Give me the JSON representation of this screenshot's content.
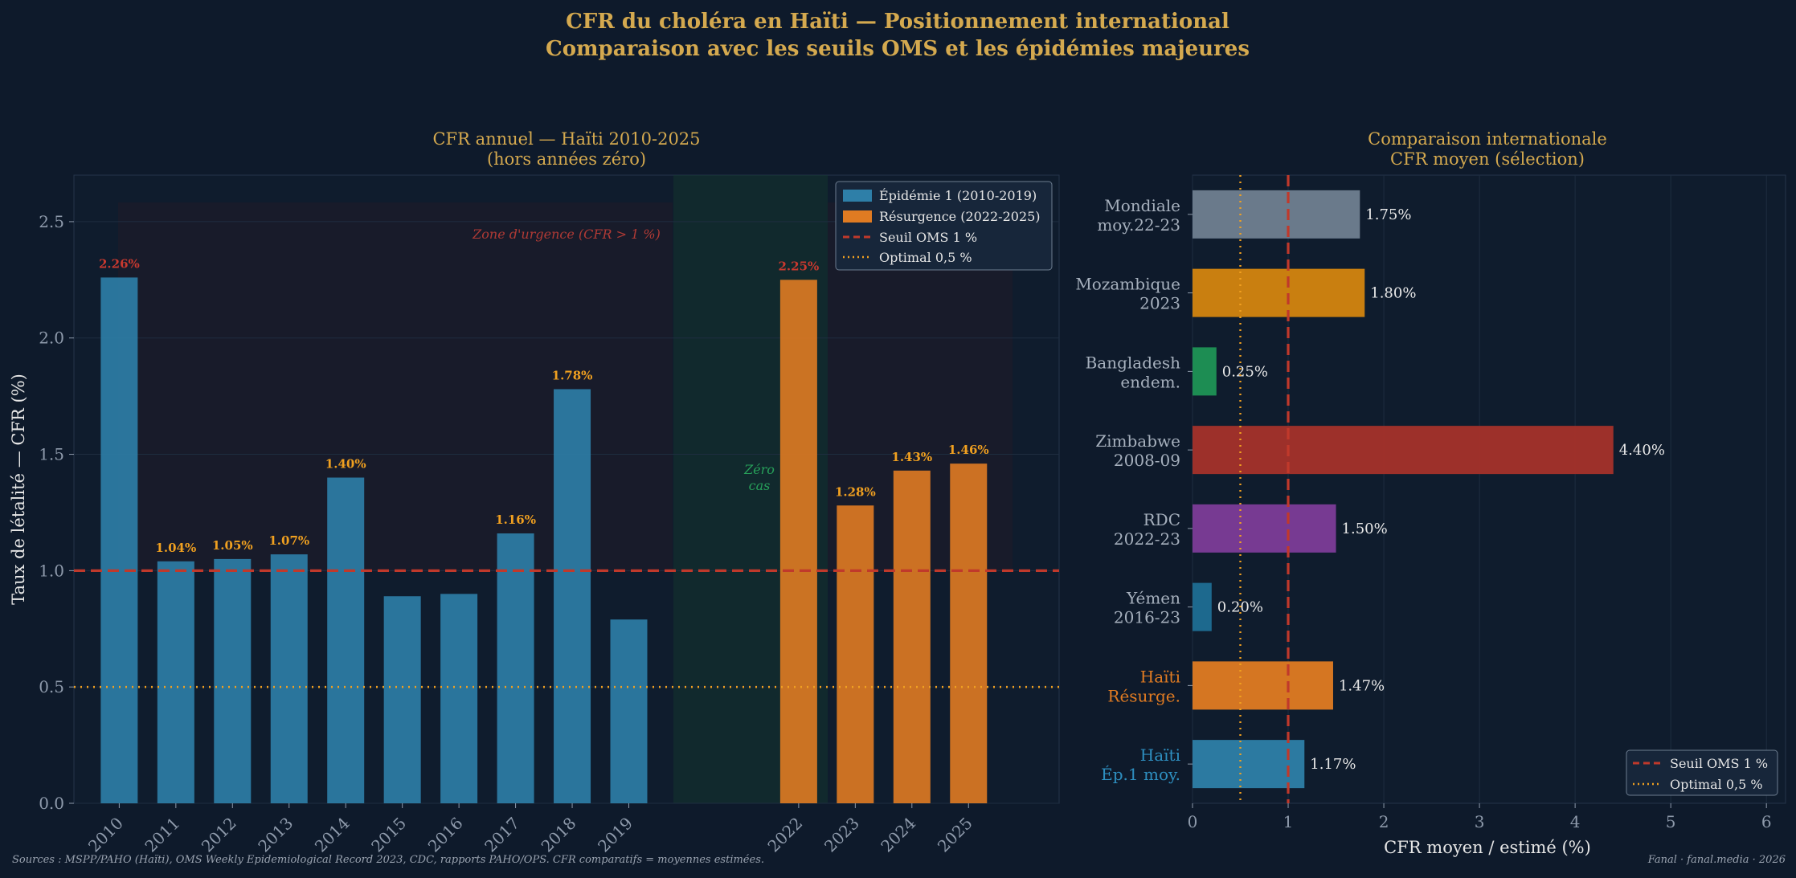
{
  "header": {
    "title": "CFR du choléra en Haïti — Positionnement international",
    "subtitle": "Comparaison avec les seuils OMS et les épidémies majeures"
  },
  "chart_data": [
    {
      "type": "bar",
      "title": "CFR annuel — Haïti 2010-2025",
      "subtitle": "(hors années zéro)",
      "xlabel": "",
      "ylabel": "Taux de létalité — CFR (%)",
      "ylim": [
        0,
        2.7
      ],
      "yticks": [
        "0.0",
        "0.5",
        "1.0",
        "1.5",
        "2.0",
        "2.5"
      ],
      "categories": [
        "2010",
        "2011",
        "2012",
        "2013",
        "2014",
        "2015",
        "2016",
        "2017",
        "2018",
        "2019",
        "2022",
        "2023",
        "2024",
        "2025"
      ],
      "series": [
        {
          "name": "Épidémie 1 (2010-2019)",
          "color": "#2e7fa8",
          "x": [
            "2010",
            "2011",
            "2012",
            "2013",
            "2014",
            "2015",
            "2016",
            "2017",
            "2018",
            "2019"
          ],
          "values": [
            2.26,
            1.04,
            1.05,
            1.07,
            1.4,
            0.89,
            0.9,
            1.16,
            1.78,
            0.79
          ]
        },
        {
          "name": "Résurgence (2022-2025)",
          "color": "#e07b22",
          "x": [
            "2022",
            "2023",
            "2024",
            "2025"
          ],
          "values": [
            2.25,
            1.28,
            1.43,
            1.46
          ]
        }
      ],
      "data_labels": [
        {
          "x": "2010",
          "text": "2.26%"
        },
        {
          "x": "2011",
          "text": "1.04%"
        },
        {
          "x": "2012",
          "text": "1.05%"
        },
        {
          "x": "2013",
          "text": "1.07%"
        },
        {
          "x": "2014",
          "text": "1.40%"
        },
        {
          "x": "2017",
          "text": "1.16%"
        },
        {
          "x": "2018",
          "text": "1.78%"
        },
        {
          "x": "2022",
          "text": "2.25%"
        },
        {
          "x": "2023",
          "text": "1.28%"
        },
        {
          "x": "2024",
          "text": "1.43%"
        },
        {
          "x": "2025",
          "text": "1.46%"
        }
      ],
      "reference_lines": [
        {
          "name": "Seuil OMS 1 %",
          "value": 1.0,
          "style": "dashed",
          "color": "#c0392b"
        },
        {
          "name": "Optimal 0,5 %",
          "value": 0.5,
          "style": "dotted",
          "color": "#f0a020"
        }
      ],
      "annotations": [
        {
          "text": "Zone d'urgence (CFR > 1 %)",
          "color": "#c0392b"
        },
        {
          "text": "Zéro",
          "color": "#27a05a"
        },
        {
          "text": "cas",
          "color": "#27a05a"
        }
      ],
      "legend": "top-right",
      "grid": true
    },
    {
      "type": "bar",
      "orientation": "horizontal",
      "title": "Comparaison internationale",
      "subtitle": "CFR moyen (sélection)",
      "xlabel": "CFR moyen / estimé (%)",
      "ylabel": "",
      "xlim": [
        0,
        6.2
      ],
      "xticks": [
        "0",
        "1",
        "2",
        "3",
        "4",
        "5",
        "6"
      ],
      "categories": [
        {
          "line1": "Mondiale",
          "line2": "moy.22-23",
          "value": 1.75,
          "label": "1.75%",
          "color": "#708090",
          "labelColor": "#a6b0bd"
        },
        {
          "line1": "Mozambique",
          "line2": "2023",
          "value": 1.8,
          "label": "1.80%",
          "color": "#d4850f",
          "labelColor": "#a6b0bd"
        },
        {
          "line1": "Bangladesh",
          "line2": "endem.",
          "value": 0.25,
          "label": "0.25%",
          "color": "#1f9455",
          "labelColor": "#a6b0bd"
        },
        {
          "line1": "Zimbabwe",
          "line2": "2008-09",
          "value": 4.4,
          "label": "4.40%",
          "color": "#a5322a",
          "labelColor": "#a6b0bd"
        },
        {
          "line1": "RDC",
          "line2": "2022-23",
          "value": 1.5,
          "label": "1.50%",
          "color": "#7d3c98",
          "labelColor": "#a6b0bd"
        },
        {
          "line1": "Yémen",
          "line2": "2016-23",
          "value": 0.2,
          "label": "0.20%",
          "color": "#1f6e94",
          "labelColor": "#a6b0bd"
        },
        {
          "line1": "Haïti",
          "line2": "Résurge.",
          "value": 1.47,
          "label": "1.47%",
          "color": "#e07b22",
          "labelColor": "#e07b22"
        },
        {
          "line1": "Haïti",
          "line2": "Ép.1 moy.",
          "value": 1.17,
          "label": "1.17%",
          "color": "#2e7fa8",
          "labelColor": "#2e8fc0"
        }
      ],
      "reference_lines": [
        {
          "name": "Seuil OMS 1 %",
          "value": 1.0,
          "style": "dashed",
          "color": "#c0392b"
        },
        {
          "name": "Optimal 0,5 %",
          "value": 0.5,
          "style": "dotted",
          "color": "#f0a020"
        }
      ],
      "legend": "bottom-right",
      "grid": true
    }
  ],
  "footer": {
    "sources": "Sources : MSPP/PAHO (Haïti), OMS Weekly Epidemiological Record 2023, CDC, rapports PAHO/OPS. CFR comparatifs = moyennes estimées.",
    "credit": "Fanal · fanal.media · 2026"
  }
}
